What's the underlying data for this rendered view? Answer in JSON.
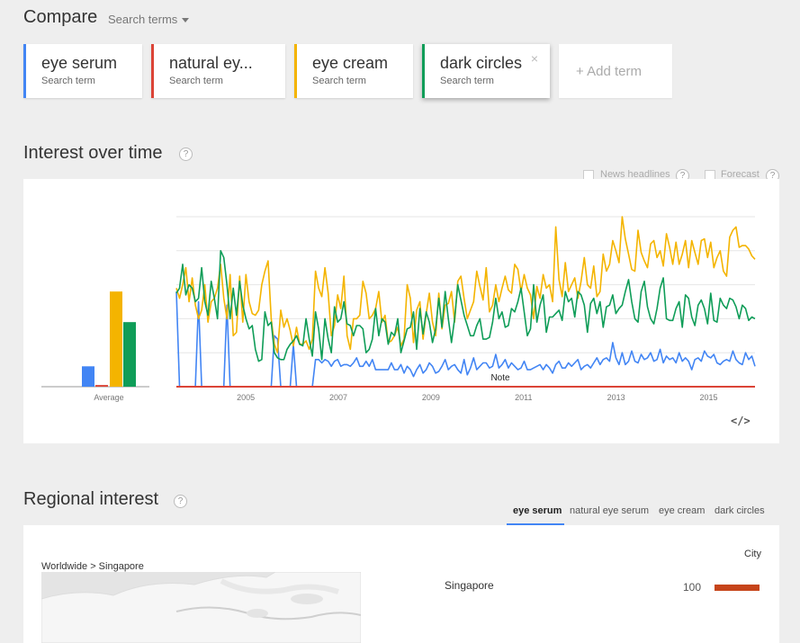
{
  "header": {
    "compare_title": "Compare",
    "search_terms_label": "Search terms"
  },
  "terms": [
    {
      "name": "eye serum",
      "subtitle": "Search term",
      "color": "#4285f4"
    },
    {
      "name": "natural ey...",
      "subtitle": "Search term",
      "color": "#db4437"
    },
    {
      "name": "eye cream",
      "subtitle": "Search term",
      "color": "#f4b400"
    },
    {
      "name": "dark circles",
      "subtitle": "Search term",
      "color": "#0f9d58",
      "close": "×"
    }
  ],
  "add_term_label": "+ Add term",
  "interest_over_time": {
    "title": "Interest over time",
    "help": "?",
    "news_headlines_label": "News headlines",
    "forecast_label": "Forecast",
    "embed_label": "</>"
  },
  "regional": {
    "title": "Regional interest",
    "help": "?",
    "tabs": [
      "eye serum",
      "natural eye serum",
      "eye cream",
      "dark circles"
    ],
    "breadcrumb": "Worldwide > Singapore",
    "level_label": "City",
    "rows": [
      {
        "name": "Singapore",
        "value": 100,
        "bar_color": "#c6441a"
      }
    ]
  },
  "chart_data": {
    "type": "line",
    "x_start": "2004-01",
    "x_end": "2016-07",
    "x_ticks": [
      "2005",
      "2007",
      "2009",
      "2011",
      "2013",
      "2015"
    ],
    "avg_label": "Average",
    "annotation": "Note",
    "y_max": 100,
    "averages": [
      {
        "name": "eye serum",
        "value": 12,
        "color": "#4285f4"
      },
      {
        "name": "natural eye serum",
        "value": 1,
        "color": "#db4437"
      },
      {
        "name": "eye cream",
        "value": 56,
        "color": "#f4b400"
      },
      {
        "name": "dark circles",
        "value": 38,
        "color": "#0f9d58"
      }
    ],
    "series": [
      {
        "name": "eye serum",
        "color": "#4285f4",
        "values": [
          56,
          0,
          0,
          0,
          0,
          0,
          0,
          50,
          0,
          0,
          0,
          0,
          0,
          0,
          0,
          0,
          48,
          0,
          0,
          0,
          0,
          0,
          0,
          0,
          0,
          0,
          0,
          0,
          0,
          0,
          0,
          30,
          28,
          0,
          0,
          0,
          0,
          25,
          0,
          0,
          0,
          0,
          0,
          0,
          16,
          16,
          14,
          16,
          15,
          12,
          15,
          16,
          12,
          13,
          13,
          12,
          14,
          17,
          12,
          12,
          15,
          12,
          16,
          10,
          10,
          10,
          10,
          10,
          14,
          10,
          10,
          13,
          8,
          12,
          10,
          6,
          10,
          13,
          8,
          10,
          14,
          12,
          8,
          9,
          12,
          16,
          10,
          12,
          13,
          10,
          8,
          16,
          7,
          11,
          17,
          10,
          12,
          14,
          14,
          11,
          12,
          19,
          11,
          13,
          16,
          11,
          14,
          12,
          10,
          11,
          15,
          10,
          10,
          11,
          12,
          13,
          10,
          13,
          11,
          8,
          13,
          15,
          11,
          11,
          14,
          12,
          14,
          16,
          10,
          12,
          13,
          11,
          14,
          17,
          13,
          16,
          17,
          15,
          26,
          17,
          13,
          20,
          13,
          15,
          21,
          15,
          14,
          19,
          16,
          17,
          20,
          15,
          16,
          22,
          14,
          18,
          16,
          17,
          14,
          20,
          15,
          17,
          15,
          10,
          16,
          17,
          15,
          21,
          18,
          17,
          19,
          14,
          13,
          15,
          16,
          15,
          21,
          16,
          14,
          13,
          20,
          16,
          18,
          12
        ],
        "name_visible": true
      },
      {
        "name": "natural eye serum",
        "color": "#db4437",
        "values": [
          0,
          0,
          0,
          0,
          0,
          0,
          0,
          0,
          0,
          0,
          0,
          0,
          0,
          0,
          0,
          0,
          0,
          0,
          0,
          0,
          0,
          0,
          0,
          0,
          0,
          0,
          0,
          0,
          0,
          0,
          0,
          0,
          0,
          0,
          0,
          0,
          0,
          0,
          0,
          0,
          0,
          0,
          0,
          0,
          0,
          0,
          0,
          0,
          0,
          0,
          0,
          0,
          0,
          0,
          0,
          0,
          0,
          0,
          0,
          0,
          0,
          0,
          0,
          0,
          0,
          0,
          0,
          0,
          0,
          0,
          0,
          0,
          0,
          0,
          0,
          0,
          0,
          0,
          0,
          0,
          0,
          0,
          0,
          0,
          0,
          0,
          0,
          0,
          0,
          0,
          0,
          0,
          0,
          0,
          0,
          0,
          0,
          0,
          0,
          0,
          0,
          0,
          0,
          0,
          0,
          0,
          0,
          0,
          0,
          0,
          0,
          0,
          0,
          0,
          0,
          0,
          0,
          0,
          0,
          0,
          0,
          0,
          0,
          0,
          0,
          0,
          0,
          0,
          0,
          0,
          0,
          0,
          0,
          0,
          0,
          0,
          0,
          0,
          0,
          0,
          0,
          0,
          0,
          0,
          0,
          0,
          0,
          0,
          0,
          0,
          0,
          0,
          0,
          0,
          0,
          0,
          0,
          0,
          0,
          0,
          0,
          0,
          0,
          0,
          0,
          0,
          0,
          0,
          0,
          0,
          0,
          0,
          0,
          0,
          0,
          0,
          0,
          0,
          0,
          0,
          0,
          0,
          0,
          0
        ]
      },
      {
        "name": "eye cream",
        "color": "#f4b400",
        "values": [
          58,
          52,
          60,
          70,
          50,
          64,
          48,
          40,
          45,
          60,
          38,
          50,
          52,
          58,
          72,
          52,
          40,
          66,
          30,
          32,
          65,
          38,
          66,
          50,
          43,
          42,
          45,
          60,
          68,
          74,
          40,
          25,
          20,
          45,
          35,
          40,
          33,
          24,
          35,
          25,
          25,
          27,
          22,
          28,
          68,
          58,
          53,
          70,
          55,
          30,
          36,
          54,
          46,
          65,
          30,
          22,
          40,
          40,
          42,
          62,
          55,
          40,
          42,
          46,
          56,
          38,
          42,
          26,
          27,
          30,
          35,
          24,
          28,
          60,
          52,
          26,
          45,
          50,
          28,
          43,
          55,
          38,
          30,
          55,
          34,
          48,
          49,
          56,
          38,
          62,
          65,
          52,
          40,
          45,
          50,
          68,
          59,
          51,
          70,
          44,
          48,
          60,
          50,
          58,
          65,
          57,
          55,
          72,
          69,
          56,
          66,
          58,
          54,
          40,
          59,
          52,
          66,
          58,
          60,
          50,
          94,
          63,
          53,
          73,
          56,
          60,
          64,
          52,
          62,
          76,
          60,
          58,
          71,
          53,
          56,
          78,
          68,
          72,
          86,
          80,
          73,
          100,
          87,
          78,
          69,
          68,
          92,
          79,
          74,
          70,
          84,
          86,
          76,
          80,
          71,
          90,
          82,
          72,
          85,
          72,
          78,
          86,
          70,
          86,
          79,
          72,
          86,
          87,
          76,
          85,
          70,
          76,
          80,
          68,
          65,
          88,
          92,
          94,
          82,
          83,
          83,
          81,
          77,
          75
        ]
      },
      {
        "name": "dark circles",
        "color": "#0f9d58",
        "values": [
          55,
          58,
          72,
          54,
          60,
          58,
          50,
          52,
          70,
          50,
          42,
          62,
          52,
          40,
          80,
          76,
          60,
          40,
          58,
          42,
          62,
          48,
          40,
          34,
          36,
          22,
          15,
          16,
          44,
          36,
          38,
          20,
          17,
          16,
          16,
          22,
          25,
          27,
          30,
          25,
          24,
          40,
          28,
          18,
          44,
          34,
          16,
          40,
          28,
          20,
          47,
          38,
          40,
          50,
          37,
          36,
          30,
          36,
          36,
          34,
          20,
          22,
          28,
          46,
          30,
          40,
          38,
          25,
          32,
          30,
          40,
          20,
          27,
          34,
          35,
          44,
          22,
          46,
          31,
          44,
          38,
          26,
          34,
          52,
          35,
          56,
          40,
          26,
          40,
          60,
          51,
          42,
          36,
          30,
          30,
          36,
          40,
          28,
          28,
          29,
          38,
          52,
          40,
          44,
          35,
          36,
          46,
          44,
          50,
          58,
          44,
          30,
          34,
          60,
          38,
          48,
          54,
          32,
          41,
          41,
          43,
          45,
          39,
          56,
          50,
          52,
          41,
          56,
          54,
          48,
          32,
          49,
          52,
          43,
          50,
          35,
          47,
          48,
          54,
          43,
          46,
          48,
          56,
          63,
          50,
          40,
          38,
          56,
          62,
          47,
          40,
          37,
          46,
          58,
          64,
          40,
          39,
          39,
          46,
          50,
          35,
          54,
          52,
          41,
          36,
          48,
          51,
          46,
          37,
          55,
          39,
          38,
          52,
          48,
          46,
          52,
          51,
          47,
          40,
          48,
          46,
          39,
          41,
          40
        ]
      }
    ]
  }
}
